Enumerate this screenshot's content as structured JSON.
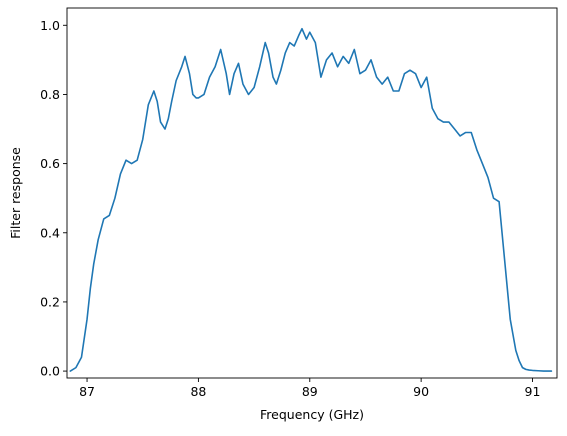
{
  "chart_data": {
    "type": "line",
    "title": "",
    "xlabel": "Frequency (GHz)",
    "ylabel": "Filter response",
    "xlim": [
      86.82,
      91.22
    ],
    "ylim": [
      -0.02,
      1.05
    ],
    "x_ticks": [
      87,
      88,
      89,
      90,
      91
    ],
    "x_tick_labels": [
      "87",
      "88",
      "89",
      "90",
      "91"
    ],
    "y_ticks": [
      0.0,
      0.2,
      0.4,
      0.6,
      0.8,
      1.0
    ],
    "y_tick_labels": [
      "0.0",
      "0.2",
      "0.4",
      "0.6",
      "0.8",
      "1.0"
    ],
    "grid": false,
    "legend": "none",
    "series": [
      {
        "color": "#1f77b4",
        "x": [
          86.85,
          86.9,
          86.95,
          87.0,
          87.03,
          87.06,
          87.1,
          87.15,
          87.2,
          87.25,
          87.3,
          87.35,
          87.4,
          87.45,
          87.5,
          87.55,
          87.6,
          87.63,
          87.66,
          87.7,
          87.73,
          87.76,
          87.8,
          87.85,
          87.88,
          87.92,
          87.95,
          87.98,
          88.0,
          88.05,
          88.1,
          88.15,
          88.2,
          88.25,
          88.28,
          88.32,
          88.36,
          88.4,
          88.45,
          88.5,
          88.55,
          88.6,
          88.63,
          88.67,
          88.7,
          88.74,
          88.78,
          88.82,
          88.86,
          88.9,
          88.93,
          88.97,
          89.0,
          89.05,
          89.1,
          89.15,
          89.2,
          89.25,
          89.3,
          89.35,
          89.4,
          89.45,
          89.5,
          89.55,
          89.6,
          89.65,
          89.7,
          89.75,
          89.8,
          89.85,
          89.9,
          89.95,
          90.0,
          90.05,
          90.1,
          90.15,
          90.2,
          90.25,
          90.3,
          90.35,
          90.4,
          90.45,
          90.5,
          90.55,
          90.6,
          90.65,
          90.7,
          90.75,
          90.8,
          90.85,
          90.88,
          90.91,
          90.94,
          90.97,
          91.0,
          91.05,
          91.1,
          91.17
        ],
        "y": [
          0.0,
          0.01,
          0.04,
          0.15,
          0.24,
          0.31,
          0.38,
          0.44,
          0.45,
          0.5,
          0.57,
          0.61,
          0.6,
          0.61,
          0.67,
          0.77,
          0.81,
          0.78,
          0.72,
          0.7,
          0.73,
          0.78,
          0.84,
          0.88,
          0.91,
          0.86,
          0.8,
          0.79,
          0.79,
          0.8,
          0.85,
          0.88,
          0.93,
          0.86,
          0.8,
          0.86,
          0.89,
          0.83,
          0.8,
          0.82,
          0.88,
          0.95,
          0.92,
          0.85,
          0.83,
          0.87,
          0.92,
          0.95,
          0.94,
          0.97,
          0.99,
          0.96,
          0.98,
          0.95,
          0.85,
          0.9,
          0.92,
          0.88,
          0.91,
          0.89,
          0.93,
          0.86,
          0.87,
          0.9,
          0.85,
          0.83,
          0.85,
          0.81,
          0.81,
          0.86,
          0.87,
          0.86,
          0.82,
          0.85,
          0.76,
          0.73,
          0.72,
          0.72,
          0.7,
          0.68,
          0.69,
          0.69,
          0.64,
          0.6,
          0.56,
          0.5,
          0.49,
          0.32,
          0.15,
          0.06,
          0.03,
          0.01,
          0.005,
          0.003,
          0.002,
          0.001,
          0.0,
          0.0
        ]
      }
    ]
  }
}
